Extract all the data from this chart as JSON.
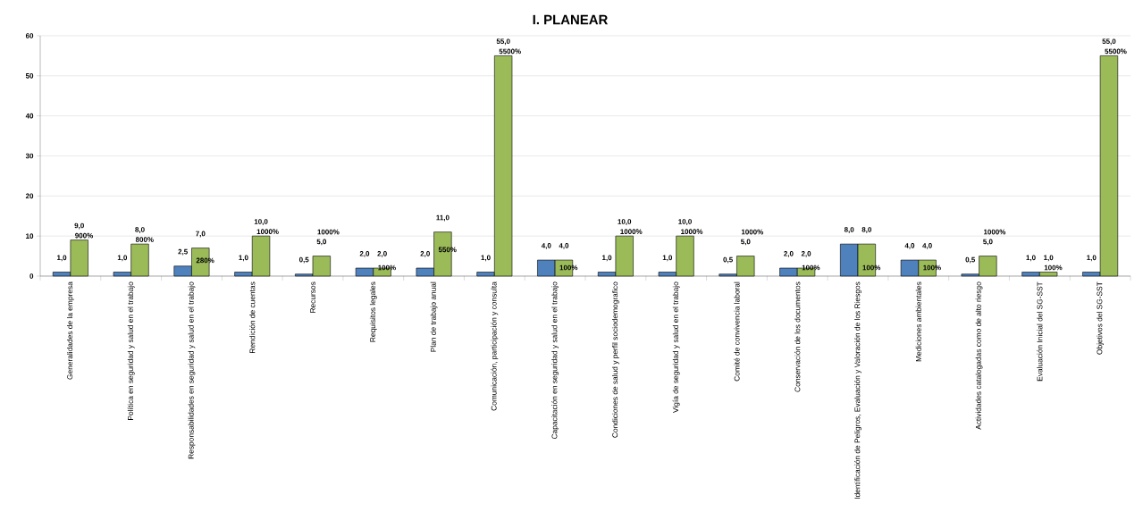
{
  "chart_data": {
    "type": "bar",
    "title": "I. PLANEAR",
    "categories": [
      "Generalidades de la empresa",
      "Política en seguridad y salud en el trabajo",
      "Responsabilidades en seguridad y salud en el trabajo",
      "Rendición de cuentas",
      "Recursos",
      "Requisitos legales",
      "Plan de trabajo anual",
      "Comunicación, participación y consulta",
      "Capacitación en seguridad y salud en el trabajo",
      "Condiciones de salud y perfil sociodemografico",
      "Vigía de seguridad y salud en el trabajo",
      "Comité de convivencia laboral",
      "Conservación de los documentos",
      "Identificación de Peligros, Evaluación y Valoración de los Riesgos",
      "Mediciones ambientales",
      "Actividades catalogadas como de alto riesgo",
      "Evaluación Inicial del SG-SST",
      "Objetivos del SG-SST"
    ],
    "series": [
      {
        "color": "#4f81bd",
        "values": [
          1,
          1,
          2.5,
          1,
          0.5,
          2,
          2,
          1,
          4,
          1,
          1,
          0.5,
          2,
          8,
          4,
          0.5,
          1,
          1
        ],
        "value_labels": [
          "1,0",
          "1,0",
          "2,5",
          "1,0",
          "0,5",
          "2,0",
          "2,0",
          "1,0",
          "4,0",
          "1,0",
          "1,0",
          "0,5",
          "2,0",
          "8,0",
          "4,0",
          "0,5",
          "1,0",
          "1,0"
        ]
      },
      {
        "color": "#9bbb59",
        "values": [
          9,
          8,
          7,
          10,
          5,
          2,
          11,
          55,
          4,
          10,
          10,
          5,
          2,
          8,
          4,
          5,
          1,
          55
        ],
        "value_labels": [
          "9,0",
          "8,0",
          "7,0",
          "10,0",
          "5,0",
          "2,0",
          "11,0",
          "55,0",
          "4,0",
          "10,0",
          "10,0",
          "5,0",
          "2,0",
          "8,0",
          "4,0",
          "5,0",
          "1,0",
          "55,0"
        ]
      }
    ],
    "ylim": [
      0,
      60
    ],
    "yticks": [
      0,
      10,
      20,
      30,
      40,
      50,
      60
    ],
    "grid": "y",
    "annotations": [
      {
        "text": "900%",
        "x": "Generalidades de la empresa",
        "y": 9
      },
      {
        "text": "800%",
        "x": "Política en seguridad y salud en el trabajo",
        "y": 8
      },
      {
        "text": "280%",
        "x": "Responsabilidades en seguridad y salud en el trabajo",
        "y": 2.8
      },
      {
        "text": "1000%",
        "x": "Rendición de cuentas",
        "y": 10
      },
      "1000%",
      {
        "text": "100%",
        "x": "Requisitos legales",
        "y": 1
      },
      {
        "text": "550%",
        "x": "Plan de trabajo anual",
        "y": 5.5
      },
      {
        "text": "5500%",
        "x": "Comunicación, participación y consulta",
        "y": 55
      },
      {
        "text": "100%",
        "x": "Capacitación en seguridad y salud en el trabajo",
        "y": 1
      },
      {
        "text": "1000%",
        "x": "Condiciones de salud y perfil sociodemografico",
        "y": 10
      },
      {
        "text": "1000%",
        "x": "Vigía de seguridad y salud en el trabajo",
        "y": 10
      },
      "1000%",
      {
        "text": "100%",
        "x": "Conservación de los documentos",
        "y": 1
      },
      {
        "text": "100%",
        "x": "Identificación de Peligros, Evaluación y Valoración de los Riesgos",
        "y": 1
      },
      {
        "text": "100%",
        "x": "Mediciones ambientales",
        "y": 1
      },
      "1000%",
      {
        "text": "100%",
        "x": "Evaluación Inicial del SG-SST",
        "y": 1
      },
      {
        "text": "5500%",
        "x": "Objetivos del SG-SST",
        "y": 55
      }
    ]
  }
}
